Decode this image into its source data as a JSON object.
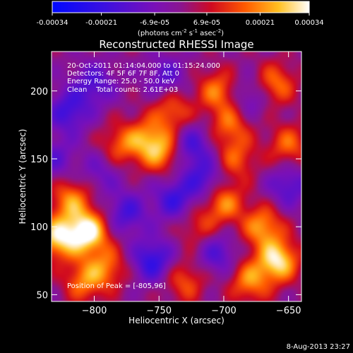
{
  "colorbar": {
    "tick_labels": [
      "-0.00034",
      "-0.00021",
      "-6.9e-05",
      "6.9e-05",
      "0.00021",
      "0.00034"
    ],
    "tick_values": [
      -0.00034,
      -0.00021,
      -6.9e-05,
      6.9e-05,
      0.00021,
      0.00034
    ],
    "range": [
      -0.00034,
      0.00034
    ],
    "units_prefix": "(photons cm",
    "units_exp1": "-2",
    "units_mid": " s",
    "units_exp2": "-1",
    "units_mid2": " asec",
    "units_exp3": "-2",
    "units_suffix": ")"
  },
  "chart_data": {
    "type": "heatmap",
    "title": "Reconstructed RHESSI Image",
    "xlabel": "Heliocentric X (arcsec)",
    "ylabel": "Heliocentric Y (arcsec)",
    "xlim": [
      -833,
      -640
    ],
    "ylim": [
      45,
      229
    ],
    "xticks": [
      -800,
      -750,
      -700,
      -650
    ],
    "xtick_labels": [
      "−800",
      "−750",
      "−700",
      "−650"
    ],
    "yticks": [
      50,
      100,
      150,
      200
    ],
    "ytick_labels": [
      "50",
      "100",
      "150",
      "200"
    ],
    "info_lines": [
      "20-Oct-2011 01:14:04.000 to 01:15:24.000",
      "Detectors: 4F 5F 6F 7F 8F, Att 0",
      "Energy Range: 25.0 - 50.0 keV",
      "Clean    Total counts: 2.61E+03"
    ],
    "peak_label": "Position of Peak = [-805,96]",
    "peak_position": [
      -805,
      96
    ],
    "colormap": "blue-purple-red-yellow-white",
    "intensity_range": [
      -0.00034,
      0.00034
    ],
    "blobs": [
      {
        "x": -805,
        "y": 96,
        "level": 1.0
      },
      {
        "x": -828,
        "y": 92,
        "level": 0.85
      },
      {
        "x": -818,
        "y": 120,
        "level": 0.6
      },
      {
        "x": -808,
        "y": 60,
        "level": 0.55
      },
      {
        "x": -790,
        "y": 70,
        "level": 0.5
      },
      {
        "x": -780,
        "y": 160,
        "level": 0.45
      },
      {
        "x": -760,
        "y": 165,
        "level": 0.5
      },
      {
        "x": -740,
        "y": 185,
        "level": 0.5
      },
      {
        "x": -748,
        "y": 155,
        "level": 0.6
      },
      {
        "x": -705,
        "y": 200,
        "level": 0.55
      },
      {
        "x": -695,
        "y": 175,
        "level": 0.5
      },
      {
        "x": -690,
        "y": 150,
        "level": 0.45
      },
      {
        "x": -700,
        "y": 118,
        "level": 0.6
      },
      {
        "x": -670,
        "y": 100,
        "level": 0.65
      },
      {
        "x": -658,
        "y": 75,
        "level": 0.9
      },
      {
        "x": -680,
        "y": 60,
        "level": 0.6
      },
      {
        "x": -650,
        "y": 160,
        "level": 0.5
      },
      {
        "x": -660,
        "y": 205,
        "level": 0.55
      },
      {
        "x": -730,
        "y": 60,
        "level": 0.45
      },
      {
        "x": -720,
        "y": 100,
        "level": 0.35
      },
      {
        "x": -820,
        "y": 185,
        "level": -0.55
      },
      {
        "x": -800,
        "y": 205,
        "level": -0.45
      },
      {
        "x": -775,
        "y": 110,
        "level": -0.5
      },
      {
        "x": -755,
        "y": 75,
        "level": -0.65
      },
      {
        "x": -738,
        "y": 120,
        "level": -0.55
      },
      {
        "x": -745,
        "y": 210,
        "level": -0.4
      },
      {
        "x": -725,
        "y": 160,
        "level": -0.5
      },
      {
        "x": -715,
        "y": 135,
        "level": -0.5
      },
      {
        "x": -705,
        "y": 80,
        "level": -0.45
      },
      {
        "x": -680,
        "y": 195,
        "level": -0.35
      },
      {
        "x": -650,
        "y": 130,
        "level": -0.45
      },
      {
        "x": -830,
        "y": 150,
        "level": -0.35
      },
      {
        "x": -795,
        "y": 140,
        "level": -0.3
      }
    ]
  },
  "footer": {
    "date": "8-Aug-2013 23:27"
  }
}
